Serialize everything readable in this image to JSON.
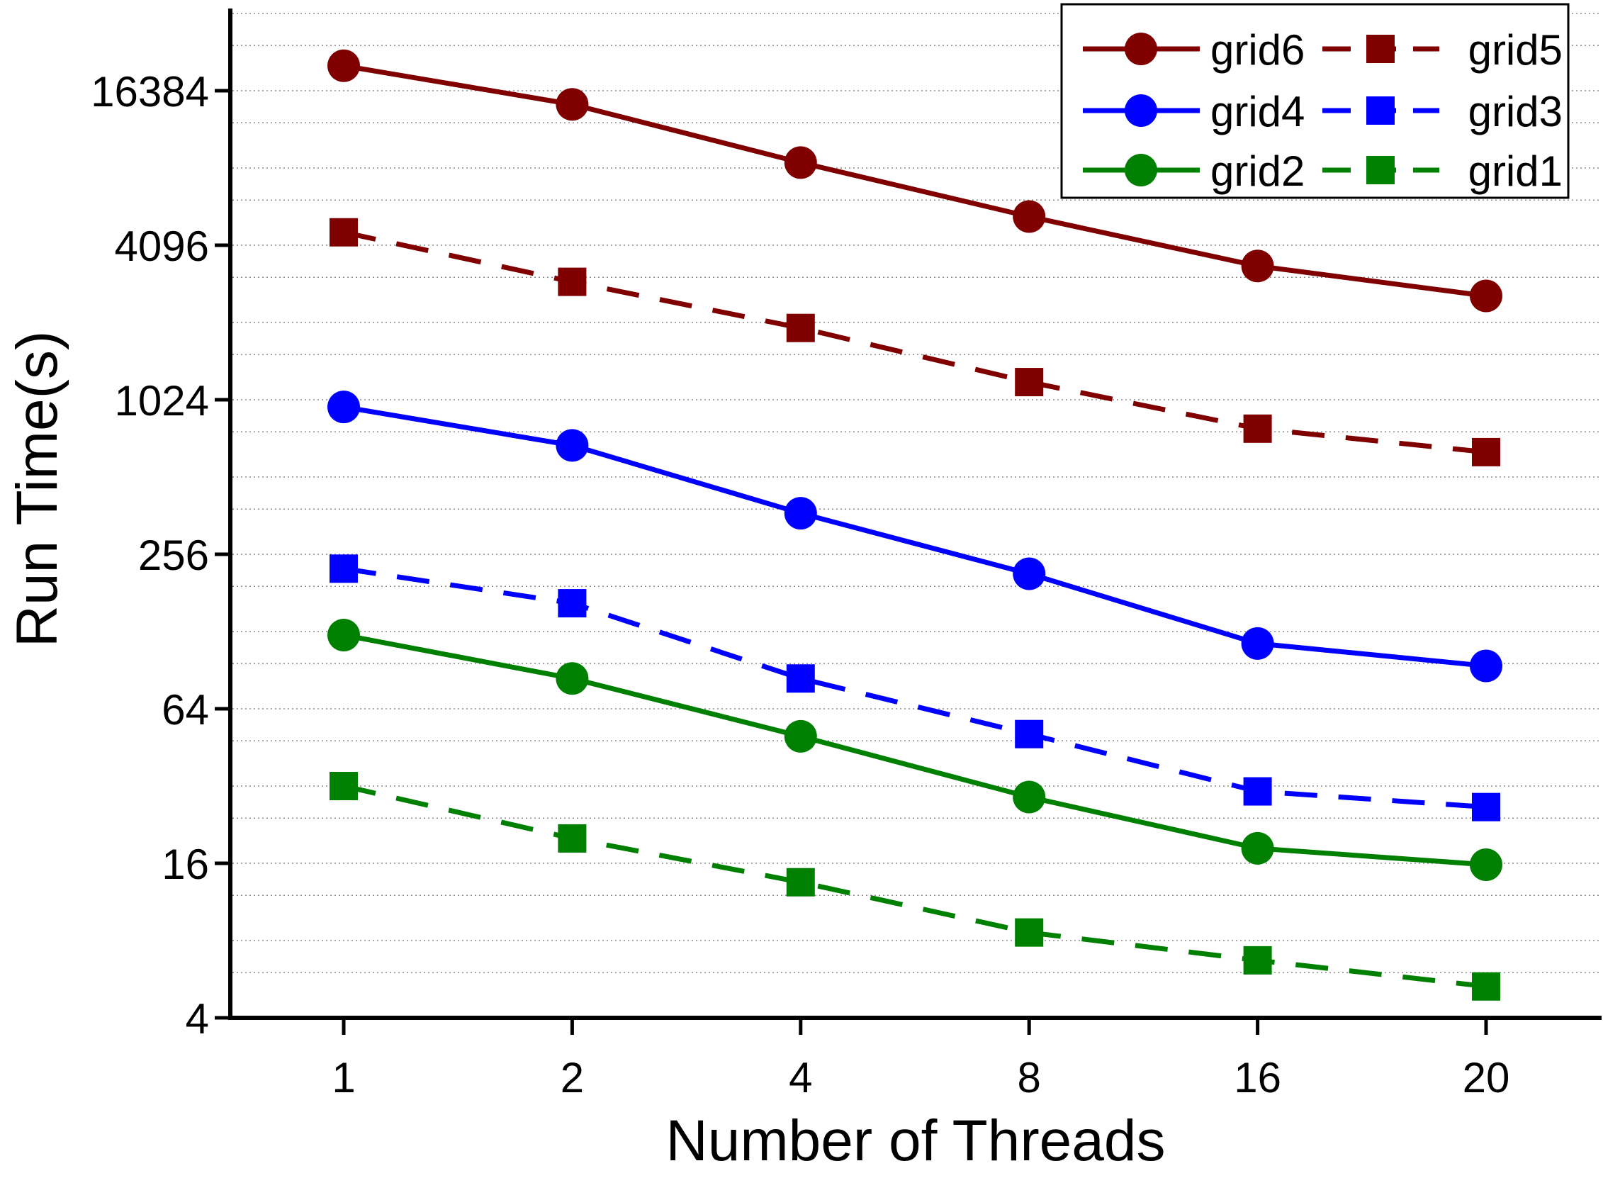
{
  "chart_data": {
    "type": "line",
    "title": "",
    "xlabel": "Number of Threads",
    "ylabel": "Run Time(s)",
    "yscale": "log2",
    "ylim": [
      4,
      40000
    ],
    "x_categories": [
      "1",
      "2",
      "4",
      "8",
      "16",
      "20"
    ],
    "y_ticks": [
      4,
      16,
      64,
      256,
      1024,
      4096,
      16384
    ],
    "y_tick_labels": [
      "4",
      "16",
      "64",
      "256",
      "1024",
      "4096",
      "16384"
    ],
    "grid": "horizontal dotted",
    "legend_position": "top-right",
    "series": [
      {
        "name": "grid6",
        "color": "#800000",
        "dash": "solid",
        "marker": "circle",
        "values": [
          20500,
          14500,
          8600,
          5300,
          3400,
          2600
        ]
      },
      {
        "name": "grid5",
        "color": "#800000",
        "dash": "dashed",
        "marker": "square",
        "values": [
          4600,
          2950,
          1950,
          1200,
          790,
          640
        ]
      },
      {
        "name": "grid4",
        "color": "#0000FF",
        "dash": "solid",
        "marker": "circle",
        "values": [
          960,
          680,
          370,
          215,
          115,
          94
        ]
      },
      {
        "name": "grid3",
        "color": "#0000FF",
        "dash": "dashed",
        "marker": "square",
        "values": [
          225,
          165,
          84,
          51,
          30.5,
          26.5
        ]
      },
      {
        "name": "grid2",
        "color": "#008000",
        "dash": "solid",
        "marker": "circle",
        "values": [
          124,
          84,
          50,
          29,
          18.3,
          15.8
        ]
      },
      {
        "name": "grid1",
        "color": "#008000",
        "dash": "dashed",
        "marker": "square",
        "values": [
          32,
          20,
          13.5,
          8.6,
          6.7,
          5.3
        ]
      }
    ]
  }
}
